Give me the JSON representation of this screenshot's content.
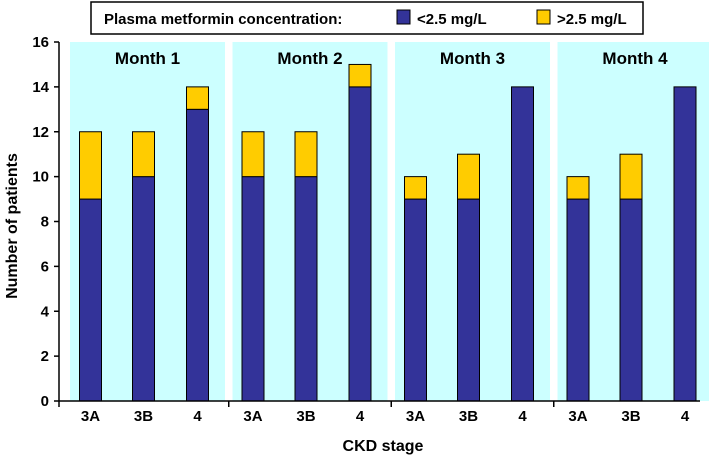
{
  "chart_data": {
    "type": "bar",
    "stacked": true,
    "legend": {
      "title": "Plasma metformin concentration:",
      "position": "top"
    },
    "xlabel": "CKD stage",
    "ylabel": "Number of patients",
    "ylim": [
      0,
      16
    ],
    "yticks": [
      0,
      2,
      4,
      6,
      8,
      10,
      12,
      14,
      16
    ],
    "series": [
      {
        "name": "<2.5 mg/L",
        "color": "#333399"
      },
      {
        "name": ">2.5 mg/L",
        "color": "#FFCC00"
      }
    ],
    "panels": [
      {
        "title": "Month 1",
        "categories": [
          "3A",
          "3B",
          "4"
        ],
        "values": [
          [
            9,
            10,
            13
          ],
          [
            3,
            2,
            1
          ]
        ]
      },
      {
        "title": "Month 2",
        "categories": [
          "3A",
          "3B",
          "4"
        ],
        "values": [
          [
            10,
            10,
            14
          ],
          [
            2,
            2,
            1
          ]
        ]
      },
      {
        "title": "Month 3",
        "categories": [
          "3A",
          "3B",
          "4"
        ],
        "values": [
          [
            9,
            9,
            14
          ],
          [
            1,
            2,
            0
          ]
        ]
      },
      {
        "title": "Month 4",
        "categories": [
          "3A",
          "3B",
          "4"
        ],
        "values": [
          [
            9,
            9,
            14
          ],
          [
            1,
            2,
            0
          ]
        ]
      }
    ],
    "panel_background": "#CCFFFF"
  }
}
